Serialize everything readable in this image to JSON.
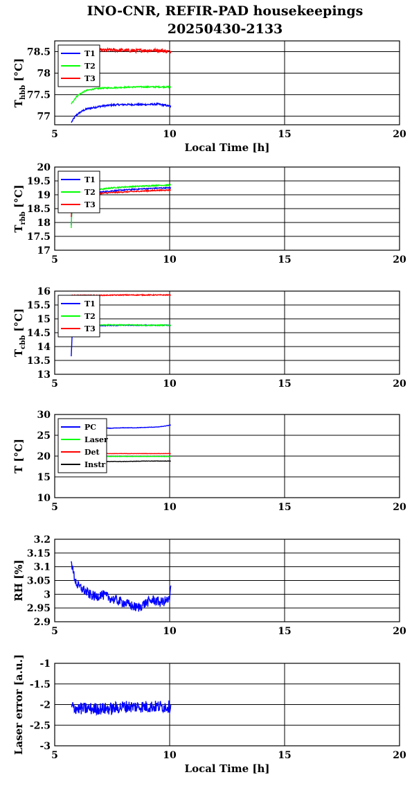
{
  "title_line1": "INO-CNR, REFIR-PAD housekeepings",
  "title_line2": "20250430-2133",
  "chart_data": [
    {
      "id": "hbb",
      "type": "line",
      "ylabel_main": "T",
      "ylabel_sub": "hbb",
      "ylabel_unit": " [°C]",
      "xlabel": "Local Time [h]",
      "xlim": [
        5,
        20
      ],
      "xticks": [
        5,
        10,
        15,
        20
      ],
      "ylim": [
        76.8,
        78.75
      ],
      "yticks": [
        77,
        77.5,
        78,
        78.5
      ],
      "yticklabels": [
        "77",
        "77.5",
        "78",
        "78.5"
      ],
      "series": [
        {
          "name": "T1",
          "color": "#0000ff",
          "noise": 0.02,
          "x": [
            5.72,
            5.8,
            5.9,
            6.0,
            6.2,
            6.4,
            6.7,
            7.0,
            7.5,
            8.0,
            8.5,
            9.0,
            9.5,
            10.05
          ],
          "y": [
            76.85,
            76.92,
            77.0,
            77.05,
            77.12,
            77.17,
            77.2,
            77.23,
            77.26,
            77.27,
            77.27,
            77.27,
            77.28,
            77.23
          ]
        },
        {
          "name": "T2",
          "color": "#00ff00",
          "noise": 0.015,
          "x": [
            5.72,
            5.8,
            5.9,
            6.0,
            6.2,
            6.4,
            6.7,
            7.0,
            7.5,
            8.0,
            8.5,
            9.0,
            9.5,
            10.05
          ],
          "y": [
            77.28,
            77.35,
            77.42,
            77.48,
            77.55,
            77.6,
            77.63,
            77.65,
            77.66,
            77.67,
            77.68,
            77.68,
            77.68,
            77.68
          ]
        },
        {
          "name": "T3",
          "color": "#ff0000",
          "noise": 0.04,
          "x": [
            5.72,
            6.0,
            6.5,
            7.0,
            7.5,
            8.0,
            8.5,
            9.0,
            9.5,
            10.05
          ],
          "y": [
            78.58,
            78.55,
            78.55,
            78.53,
            78.54,
            78.53,
            78.52,
            78.53,
            78.53,
            78.5
          ]
        }
      ],
      "legend": "top-left"
    },
    {
      "id": "rbb",
      "type": "line",
      "ylabel_main": "T",
      "ylabel_sub": "rbb",
      "ylabel_unit": " [°C]",
      "xlabel": "",
      "xlim": [
        5,
        20
      ],
      "xticks": [
        5,
        10,
        15,
        20
      ],
      "ylim": [
        17,
        20
      ],
      "yticks": [
        17,
        17.5,
        18,
        18.5,
        19,
        19.5,
        20
      ],
      "yticklabels": [
        "17",
        "17.5",
        "18",
        "18.5",
        "19",
        "19.5",
        "20"
      ],
      "series": [
        {
          "name": "T1",
          "color": "#0000ff",
          "noise": 0.02,
          "x": [
            5.72,
            5.75,
            5.8,
            6.0,
            6.5,
            7.0,
            7.5,
            8.0,
            8.5,
            9.0,
            9.5,
            10.05
          ],
          "y": [
            17.9,
            18.6,
            18.95,
            19.02,
            19.07,
            19.1,
            19.14,
            19.17,
            19.2,
            19.22,
            19.24,
            19.25
          ]
        },
        {
          "name": "T2",
          "color": "#00ff00",
          "noise": 0.02,
          "x": [
            5.72,
            5.75,
            5.8,
            6.0,
            6.5,
            7.0,
            7.5,
            8.0,
            8.5,
            9.0,
            9.5,
            10.05
          ],
          "y": [
            17.8,
            18.6,
            19.0,
            19.08,
            19.15,
            19.2,
            19.25,
            19.28,
            19.3,
            19.32,
            19.34,
            19.35
          ]
        },
        {
          "name": "T3",
          "color": "#ff0000",
          "noise": 0.02,
          "x": [
            5.72,
            5.75,
            5.8,
            6.0,
            6.5,
            7.0,
            7.5,
            8.0,
            8.5,
            9.0,
            9.5,
            10.05
          ],
          "y": [
            18.2,
            18.7,
            18.92,
            18.98,
            19.02,
            19.05,
            19.08,
            19.1,
            19.12,
            19.14,
            19.16,
            19.17
          ]
        }
      ],
      "legend": "top-left"
    },
    {
      "id": "cbb",
      "type": "line",
      "ylabel_main": "T",
      "ylabel_sub": "cbb",
      "ylabel_unit": " [°C]",
      "xlabel": "",
      "xlim": [
        5,
        20
      ],
      "xticks": [
        5,
        10,
        15,
        20
      ],
      "ylim": [
        13,
        16
      ],
      "yticks": [
        13,
        13.5,
        14,
        14.5,
        15,
        15.5,
        16
      ],
      "yticklabels": [
        "13",
        "13.5",
        "14",
        "14.5",
        "15",
        "15.5",
        "16"
      ],
      "series": [
        {
          "name": "T1",
          "color": "#0000ff",
          "noise": 0.015,
          "x": [
            5.72,
            5.75,
            5.8,
            6.0,
            6.5,
            7.0,
            8.0,
            9.0,
            10.05
          ],
          "y": [
            13.65,
            14.3,
            14.65,
            14.72,
            14.75,
            14.76,
            14.77,
            14.77,
            14.77
          ]
        },
        {
          "name": "T2",
          "color": "#00ff00",
          "noise": 0.015,
          "x": [
            5.72,
            5.75,
            5.8,
            6.0,
            6.5,
            7.0,
            8.0,
            9.0,
            10.05
          ],
          "y": [
            14.5,
            14.68,
            14.74,
            14.77,
            14.78,
            14.78,
            14.78,
            14.77,
            14.77
          ]
        },
        {
          "name": "T3",
          "color": "#ff0000",
          "noise": 0.015,
          "x": [
            5.72,
            6.0,
            7.0,
            8.0,
            9.0,
            10.05
          ],
          "y": [
            15.85,
            15.85,
            15.85,
            15.86,
            15.86,
            15.86
          ]
        }
      ],
      "legend": "top-left"
    },
    {
      "id": "temps",
      "type": "line",
      "ylabel_main": "T",
      "ylabel_sub": "",
      "ylabel_unit": " [°C]",
      "xlabel": "",
      "xlim": [
        5,
        20
      ],
      "xticks": [
        5,
        10,
        15,
        20
      ],
      "ylim": [
        10,
        30
      ],
      "yticks": [
        10,
        15,
        20,
        25,
        30
      ],
      "yticklabels": [
        "10",
        "15",
        "20",
        "25",
        "30"
      ],
      "series": [
        {
          "name": "PC",
          "color": "#0000ff",
          "noise": 0.05,
          "x": [
            5.72,
            6.5,
            7.0,
            7.5,
            8.0,
            8.5,
            9.0,
            9.5,
            9.8,
            10.05
          ],
          "y": [
            26.3,
            26.5,
            26.7,
            26.7,
            26.8,
            26.8,
            26.9,
            27.0,
            27.2,
            27.5
          ]
        },
        {
          "name": "Laser",
          "color": "#00ff00",
          "noise": 0.03,
          "x": [
            5.72,
            7.0,
            8.0,
            9.0,
            10.05
          ],
          "y": [
            19.9,
            19.9,
            19.9,
            19.9,
            19.9
          ]
        },
        {
          "name": "Det",
          "color": "#ff0000",
          "noise": 0.03,
          "x": [
            5.72,
            7.0,
            8.0,
            9.0,
            10.05
          ],
          "y": [
            20.6,
            20.6,
            20.6,
            20.6,
            20.6
          ]
        },
        {
          "name": "Instr",
          "color": "#000000",
          "noise": 0.04,
          "x": [
            5.72,
            7.0,
            8.0,
            9.0,
            10.05
          ],
          "y": [
            18.6,
            18.7,
            18.7,
            18.8,
            18.8
          ]
        }
      ],
      "legend": "top-left"
    },
    {
      "id": "rh",
      "type": "line",
      "ylabel_main": "RH [%]",
      "ylabel_sub": "",
      "ylabel_unit": "",
      "xlabel": "",
      "xlim": [
        5,
        20
      ],
      "xticks": [
        5,
        10,
        15,
        20
      ],
      "ylim": [
        2.9,
        3.2
      ],
      "yticks": [
        2.9,
        2.95,
        3,
        3.05,
        3.1,
        3.15,
        3.2
      ],
      "yticklabels": [
        "2.9",
        "2.95",
        "3",
        "3.05",
        "3.1",
        "3.15",
        "3.2"
      ],
      "series": [
        {
          "name": "",
          "color": "#0000ff",
          "noise": 0.018,
          "x": [
            5.72,
            5.8,
            5.9,
            6.0,
            6.2,
            6.5,
            6.8,
            7.0,
            7.3,
            7.6,
            8.0,
            8.3,
            8.6,
            9.0,
            9.3,
            9.6,
            10.0,
            10.05
          ],
          "y": [
            3.12,
            3.08,
            3.05,
            3.03,
            3.02,
            3.0,
            2.99,
            3.0,
            2.99,
            2.98,
            2.97,
            2.96,
            2.95,
            2.97,
            2.98,
            2.97,
            2.98,
            3.03
          ]
        }
      ],
      "legend": "none"
    },
    {
      "id": "laser",
      "type": "line",
      "ylabel_main": "Laser error [a.u.]",
      "ylabel_sub": "",
      "ylabel_unit": "",
      "xlabel": "Local Time [h]",
      "xlim": [
        5,
        20
      ],
      "xticks": [
        5,
        10,
        15,
        20
      ],
      "ylim": [
        -3,
        -1
      ],
      "yticks": [
        -3,
        -2.5,
        -2,
        -1.5,
        -1
      ],
      "yticklabels": [
        "-3",
        "-2.5",
        "-2",
        "-1.5",
        "-1"
      ],
      "series": [
        {
          "name": "",
          "color": "#0000ff",
          "noise": 0.15,
          "x": [
            5.72,
            6.0,
            6.5,
            7.0,
            7.5,
            8.0,
            8.5,
            9.0,
            9.5,
            10.05
          ],
          "y": [
            -2.05,
            -2.1,
            -2.1,
            -2.1,
            -2.1,
            -2.05,
            -2.05,
            -2.05,
            -2.05,
            -2.05
          ]
        }
      ],
      "legend": "none"
    }
  ]
}
